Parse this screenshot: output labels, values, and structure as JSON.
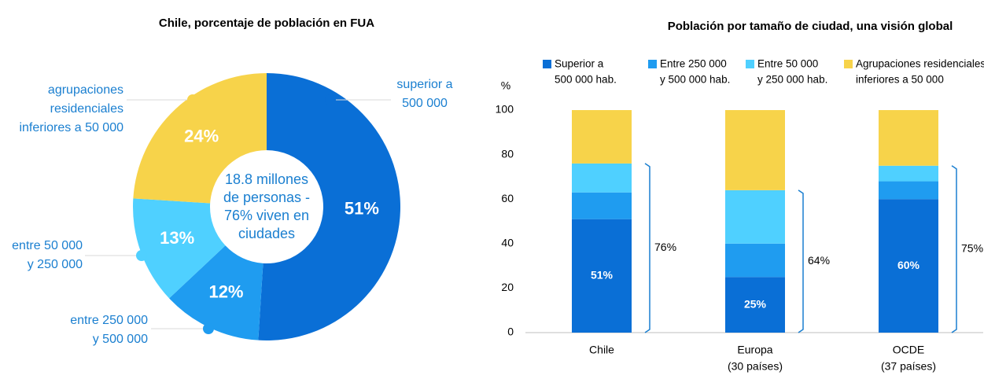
{
  "chart_data": [
    {
      "type": "donut",
      "title": "Chile, porcentaje de población en FUA",
      "center_text": [
        "18.8 millones",
        "de personas -",
        "76% viven en",
        "ciudades"
      ],
      "categories": [
        [
          "superior a",
          "500 000"
        ],
        [
          "entre 250 000",
          "y 500 000"
        ],
        [
          "entre 50 000",
          "y 250 000"
        ],
        [
          "agrupaciones",
          "residenciales",
          "inferiores a 50 000"
        ]
      ],
      "values": [
        51,
        12,
        13,
        24
      ],
      "value_labels": [
        "51%",
        "12%",
        "13%",
        "24%"
      ],
      "colors": [
        "#0a6fd6",
        "#1f9cf0",
        "#4fd0ff",
        "#f7d34a"
      ]
    },
    {
      "type": "stacked_bar",
      "title": "Población por tamaño de ciudad, una visión global",
      "ylabel": "%",
      "categories": [
        [
          "Chile"
        ],
        [
          "Europa",
          "(30 países)"
        ],
        [
          "OCDE",
          "(37 países)"
        ]
      ],
      "series": [
        {
          "name": [
            "Superior a",
            "500 000 hab."
          ],
          "color": "#0a6fd6",
          "values": [
            51,
            25,
            60
          ],
          "value_labels": [
            "51%",
            "25%",
            "60%"
          ]
        },
        {
          "name": [
            "Entre 250 000",
            "y 500 000 hab."
          ],
          "color": "#1f9cf0",
          "values": [
            12,
            15,
            8
          ]
        },
        {
          "name": [
            "Entre 50 000",
            "y 250 000 hab."
          ],
          "color": "#4fd0ff",
          "values": [
            13,
            24,
            7
          ]
        },
        {
          "name": [
            "Agrupaciones residenciales",
            "inferiores a 50 000"
          ],
          "color": "#f7d34a",
          "values": [
            24,
            36,
            25
          ]
        }
      ],
      "brackets": [
        {
          "value": 76,
          "label": "76%"
        },
        {
          "value": 64,
          "label": "64%"
        },
        {
          "value": 75,
          "label": "75%"
        }
      ],
      "ylim": [
        0,
        100
      ],
      "yticks": [
        0,
        20,
        40,
        60,
        80,
        100
      ]
    }
  ]
}
